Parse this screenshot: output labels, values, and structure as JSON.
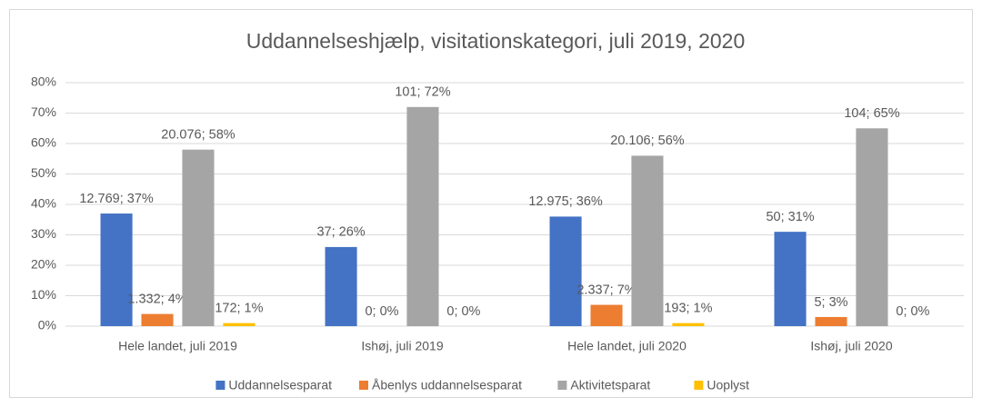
{
  "chart_data": {
    "type": "bar",
    "title": "Uddannelseshjælp,  visitationskategori, juli 2019, 2020",
    "categories": [
      "Hele landet, juli 2019",
      "Ishøj, juli 2019",
      "Hele landet, juli 2020",
      "Ishøj, juli 2020"
    ],
    "series": [
      {
        "name": "Uddannelsesparat",
        "color": "#4472c4",
        "values": [
          37,
          26,
          36,
          31
        ],
        "value_labels": [
          "12.769; 37%",
          "37; 26%",
          "12.975; 36%",
          "50; 31%"
        ]
      },
      {
        "name": "Åbenlys uddannelsesparat",
        "color": "#ed7d31",
        "values": [
          4,
          0,
          7,
          3
        ],
        "value_labels": [
          "1.332; 4%",
          "0; 0%",
          "2.337; 7%",
          "5; 3%"
        ]
      },
      {
        "name": "Aktivitetsparat",
        "color": "#a5a5a5",
        "values": [
          58,
          72,
          56,
          65
        ],
        "value_labels": [
          "20.076; 58%",
          "101; 72%",
          "20.106; 56%",
          "104; 65%"
        ]
      },
      {
        "name": "Uoplyst",
        "color": "#ffc000",
        "values": [
          1,
          0,
          1,
          0
        ],
        "value_labels": [
          "172; 1%",
          "0; 0%",
          "193; 1%",
          "0; 0%"
        ]
      }
    ],
    "ylim": [
      0,
      80
    ],
    "yticks": [
      {
        "value": 0,
        "label": "0%"
      },
      {
        "value": 10,
        "label": "10%"
      },
      {
        "value": 20,
        "label": "20%"
      },
      {
        "value": 30,
        "label": "30%"
      },
      {
        "value": 40,
        "label": "40%"
      },
      {
        "value": 50,
        "label": "50%"
      },
      {
        "value": 60,
        "label": "60%"
      },
      {
        "value": 70,
        "label": "70%"
      },
      {
        "value": 80,
        "label": "80%"
      }
    ],
    "grid": true,
    "legend": "bottom"
  }
}
